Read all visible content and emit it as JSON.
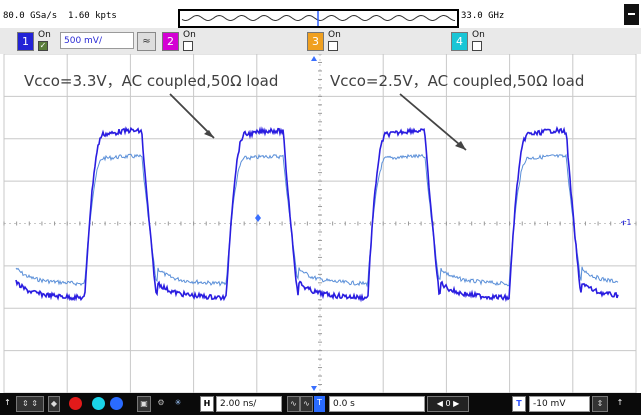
{
  "status": {
    "sample_rate": "80.0 GSa/s",
    "record_length": "1.60 kpts",
    "bandwidth": "33.0 GHz"
  },
  "channels": [
    {
      "number": "1",
      "state": "On",
      "scale": "500 mV/",
      "color": "#2323d6",
      "enabled": true
    },
    {
      "number": "2",
      "state": "On",
      "color": "#d400d4",
      "enabled": false
    },
    {
      "number": "3",
      "state": "On",
      "color": "#f0a020",
      "enabled": false
    },
    {
      "number": "4",
      "state": "On",
      "color": "#19c6d6",
      "enabled": false
    }
  ],
  "annotations": [
    {
      "text": "Vcco=3.3V，AC coupled,50Ω load"
    },
    {
      "text": "Vcco=2.5V，AC coupled,50Ω load"
    }
  ],
  "timebase": {
    "label": "H",
    "scale": "2.00 ns/",
    "position": "0.0 s",
    "position_value": "0"
  },
  "trigger": {
    "label": "T",
    "level": "-10 mV"
  },
  "colors": {
    "grid": "#c8c8c8",
    "trace_bright": "#2a1de0",
    "trace_dim": "#5a8fd8",
    "toolbar": "#0a0a0a"
  }
}
